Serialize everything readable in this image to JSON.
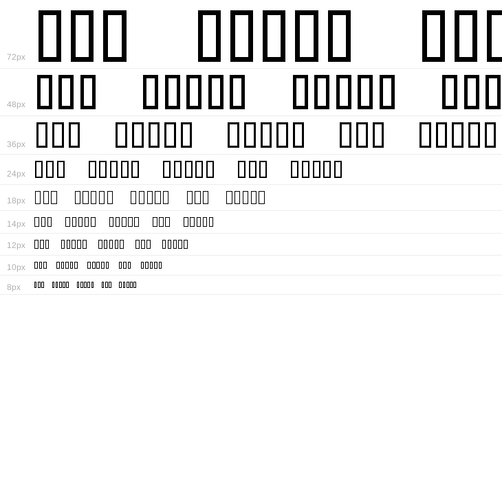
{
  "waterfall": {
    "rows": [
      {
        "size_label": "72px"
      },
      {
        "size_label": "48px"
      },
      {
        "size_label": "36px"
      },
      {
        "size_label": "24px"
      },
      {
        "size_label": "18px"
      },
      {
        "size_label": "14px"
      },
      {
        "size_label": "12px"
      },
      {
        "size_label": "10px"
      },
      {
        "size_label": "8px"
      }
    ],
    "sample_words_glyph_counts": [
      3,
      5,
      5,
      3,
      5
    ],
    "glyph_name": "notdef-box",
    "colors": {
      "glyph_outline": "#000000",
      "size_label_text": "#b0b0b0",
      "row_separator": "#eeeeee",
      "page_background": "#ffffff"
    }
  }
}
